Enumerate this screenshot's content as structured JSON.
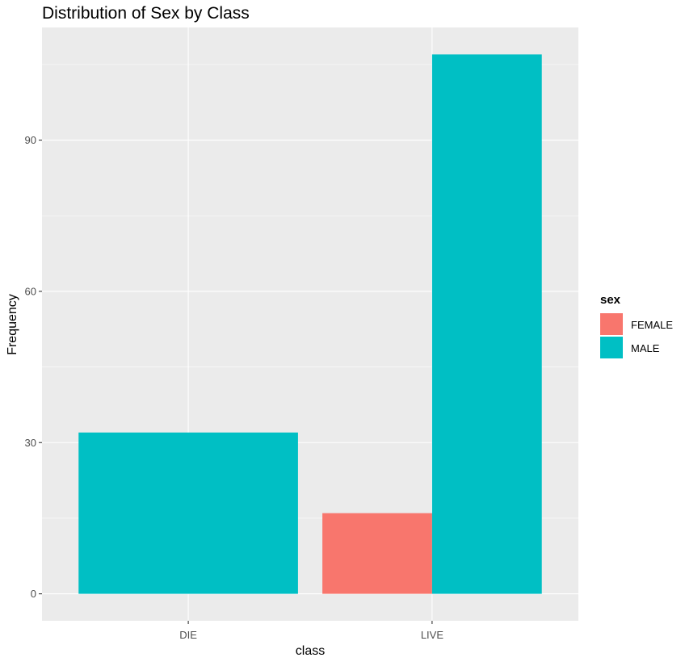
{
  "chart_data": {
    "type": "bar",
    "position": "dodge",
    "title": "Distribution of Sex by Class",
    "xlabel": "class",
    "ylabel": "Frequency",
    "categories": [
      "DIE",
      "LIVE"
    ],
    "series": [
      {
        "name": "FEMALE",
        "color": "#F8766D",
        "values": [
          0,
          16
        ]
      },
      {
        "name": "MALE",
        "color": "#00BFC4",
        "values": [
          32,
          107
        ]
      }
    ],
    "ylim": [
      -5.35,
      112.35
    ],
    "yticks": [
      0,
      30,
      60,
      90
    ],
    "grid": true,
    "background": "#EBEBEB",
    "legend": {
      "title": "sex",
      "position": "right"
    }
  }
}
